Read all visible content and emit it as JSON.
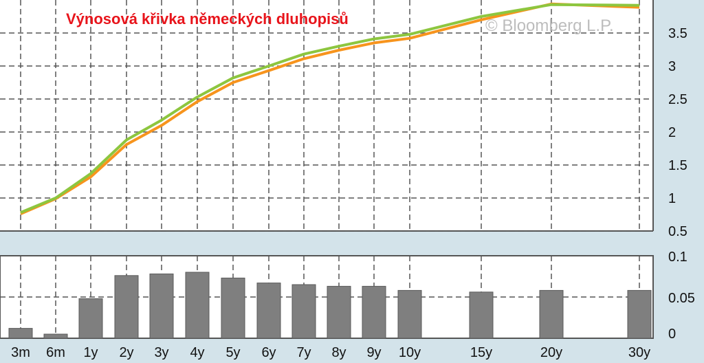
{
  "title": "Výnosová křivka německých dluhopisů",
  "watermark": "© Bloomberg L.P.",
  "colors": {
    "background": "#d3e3ea",
    "plot_background": "#ffffff",
    "grid": "#555555",
    "series_current": "#8dc63f",
    "series_previous": "#f7941d",
    "bars": "#7f7f7f"
  },
  "chart_data": [
    {
      "type": "line",
      "categories": [
        "3m",
        "6m",
        "1y",
        "2y",
        "3y",
        "4y",
        "5y",
        "6y",
        "7y",
        "8y",
        "9y",
        "10y",
        "15y",
        "20y",
        "30y"
      ],
      "x_positions_years": [
        0.25,
        0.5,
        1,
        2,
        3,
        4,
        5,
        6,
        7,
        8,
        9,
        10,
        15,
        20,
        30
      ],
      "series": [
        {
          "color": "#8dc63f",
          "values": [
            0.78,
            1.0,
            1.37,
            1.88,
            2.18,
            2.53,
            2.82,
            3.0,
            3.18,
            3.3,
            3.41,
            3.48,
            3.75,
            3.93,
            3.92
          ]
        },
        {
          "color": "#f7941d",
          "values": [
            0.76,
            0.99,
            1.32,
            1.81,
            2.1,
            2.46,
            2.75,
            2.93,
            3.11,
            3.24,
            3.35,
            3.42,
            3.7,
            3.94,
            3.89
          ]
        }
      ],
      "ylim": [
        0.5,
        4.0
      ],
      "yticks": [
        "0.5",
        "1",
        "1.5",
        "2",
        "2.5",
        "3",
        "3.5"
      ],
      "grid": true
    },
    {
      "type": "bar",
      "categories": [
        "3m",
        "6m",
        "1y",
        "2y",
        "3y",
        "4y",
        "5y",
        "6y",
        "7y",
        "8y",
        "9y",
        "10y",
        "15y",
        "20y",
        "30y"
      ],
      "values": [
        0.012,
        0.005,
        0.048,
        0.076,
        0.078,
        0.08,
        0.073,
        0.067,
        0.065,
        0.063,
        0.063,
        0.058,
        0.056,
        0.058,
        0.058
      ],
      "ylim": [
        0,
        0.1
      ],
      "yticks": [
        "0",
        "0.05",
        "0.1"
      ],
      "grid": true
    }
  ]
}
